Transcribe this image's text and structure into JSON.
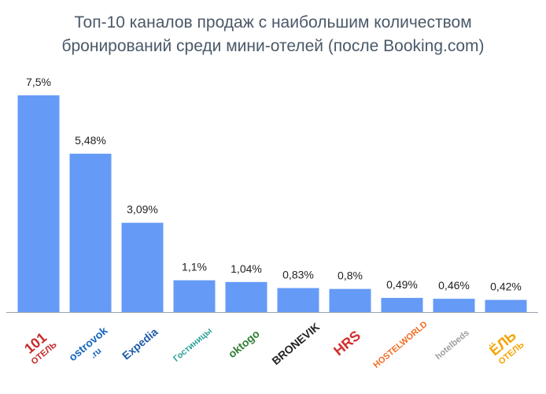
{
  "title": {
    "line1": "Топ-10 каналов продаж с наибольшим количеством",
    "line2": "бронирований среди мини-отелей (после Booking.com)"
  },
  "colors": {
    "bar": "#659bf7",
    "axis": "#9aa4ae",
    "title": "#4a5968"
  },
  "chart_data": {
    "type": "bar",
    "title": "Топ-10 каналов продаж с наибольшим количеством бронирований среди мини-отелей (после Booking.com)",
    "categories": [
      "101 ОТЕЛЬ",
      "ostrovok.ru",
      "Expedia",
      "Гостиницы",
      "oktogo",
      "BRONEVIK",
      "HRS",
      "HOSTELWORLD",
      "hotelbeds",
      "ЁЛЬ ОТЕЛЬ"
    ],
    "series": [
      {
        "values": [
          7.5,
          5.48,
          3.09,
          1.1,
          1.04,
          0.83,
          0.8,
          0.49,
          0.46,
          0.42
        ]
      }
    ],
    "data_labels": [
      "7,5%",
      "5,48%",
      "3,09%",
      "1,1%",
      "1,04%",
      "0,83%",
      "0,8%",
      "0,49%",
      "0,46%",
      "0,42%"
    ],
    "ylim": [
      0,
      7.5
    ],
    "grid": false,
    "xlabel": "",
    "ylabel": ""
  },
  "logos": [
    {
      "text": "101",
      "sub": "ОТЕЛЬ",
      "color": "#c62828",
      "icon": "hotel-101-logo"
    },
    {
      "text": "ostrovok",
      "sub": ".ru",
      "color": "#1565c0",
      "icon": "ostrovok-logo"
    },
    {
      "text": "Expedia",
      "sub": "",
      "color": "#1e5aa8",
      "icon": "expedia-globe-logo"
    },
    {
      "text": "Гостиницы",
      "sub": "",
      "color": "#2aa198",
      "icon": "stars-logo"
    },
    {
      "text": "oktogo",
      "sub": "",
      "color": "#2e7d32",
      "icon": "oktogo-logo"
    },
    {
      "text": "BRONEVIK",
      "sub": "",
      "color": "#222222",
      "icon": "bronevik-logo"
    },
    {
      "text": "HRS",
      "sub": "",
      "color": "#d32f2f",
      "icon": "hrs-logo"
    },
    {
      "text": "HOSTELWORLD",
      "sub": "",
      "color": "#f26b21",
      "icon": "hostelworld-logo"
    },
    {
      "text": "hotelbeds",
      "sub": "",
      "color": "#9e9e9e",
      "icon": "hotelbeds-logo"
    },
    {
      "text": "ЁЛЬ",
      "sub": "ОТЕЛЬ",
      "color": "#f4a300",
      "icon": "el-hotel-logo"
    }
  ]
}
